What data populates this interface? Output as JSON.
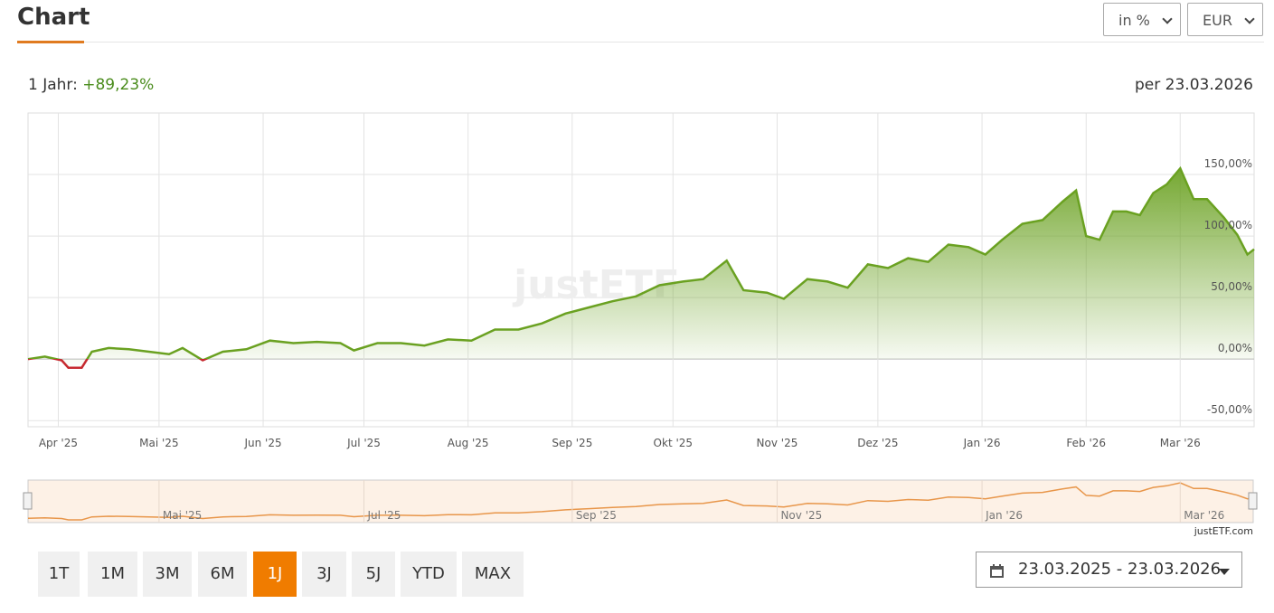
{
  "header": {
    "title": "Chart",
    "unit_select": "in %",
    "currency_select": "EUR"
  },
  "summary": {
    "period_label": "1 Jahr:",
    "period_return": "+89,23%",
    "as_of": "per 23.03.2026"
  },
  "chart_data": {
    "type": "line",
    "watermark": "justETF",
    "x": [
      0,
      5,
      10,
      12,
      16,
      19,
      24,
      30,
      36,
      42,
      46,
      52,
      58,
      65,
      72,
      79,
      86,
      93,
      97,
      104,
      111,
      118,
      125,
      132,
      139,
      146,
      153,
      160,
      167,
      174,
      181,
      188,
      195,
      201,
      208,
      213,
      220,
      225,
      232,
      238,
      244,
      250,
      256,
      262,
      268,
      274,
      280,
      285,
      290,
      296,
      302,
      308,
      312,
      315,
      319,
      323,
      327,
      331,
      335,
      339,
      343,
      347,
      351,
      356,
      360,
      363,
      365
    ],
    "series": [
      {
        "name": "1 Jahr",
        "color": "#6aa121",
        "negative_color": "#c62a2f",
        "values": [
          0,
          2,
          -1,
          -7,
          -7,
          6,
          9,
          8,
          6,
          4,
          9,
          -1,
          6,
          8,
          15,
          13,
          14,
          13,
          7,
          13,
          13,
          11,
          16,
          15,
          24,
          24,
          29,
          37,
          42,
          47,
          51,
          60,
          63,
          65,
          80,
          56,
          54,
          49,
          65,
          63,
          58,
          77,
          74,
          82,
          79,
          93,
          91,
          85,
          97,
          110,
          113,
          128,
          137,
          100,
          97,
          120,
          120,
          117,
          135,
          142,
          155,
          130,
          130,
          115,
          101,
          85,
          89.23
        ]
      }
    ],
    "xlim": [
      0,
      365
    ],
    "xticks": [
      {
        "value": 9,
        "label": "Apr '25"
      },
      {
        "value": 39,
        "label": "Mai '25"
      },
      {
        "value": 70,
        "label": "Jun '25"
      },
      {
        "value": 100,
        "label": "Jul '25"
      },
      {
        "value": 131,
        "label": "Aug '25"
      },
      {
        "value": 162,
        "label": "Sep '25"
      },
      {
        "value": 192,
        "label": "Okt '25"
      },
      {
        "value": 223,
        "label": "Nov '25"
      },
      {
        "value": 253,
        "label": "Dez '25"
      },
      {
        "value": 284,
        "label": "Jan '26"
      },
      {
        "value": 315,
        "label": "Feb '26"
      },
      {
        "value": 343,
        "label": "Mar '26"
      }
    ],
    "ylim": [
      -55,
      200
    ],
    "yticks": [
      {
        "value": -50,
        "label": "-50,00%"
      },
      {
        "value": 0,
        "label": "0,00%"
      },
      {
        "value": 50,
        "label": "50,00%"
      },
      {
        "value": 100,
        "label": "100,00%"
      },
      {
        "value": 150,
        "label": "150,00%"
      }
    ],
    "grid": true,
    "navigator": {
      "color": "#e8964a",
      "xticks": [
        {
          "value": 39,
          "label": "Mai '25"
        },
        {
          "value": 100,
          "label": "Jul '25"
        },
        {
          "value": 162,
          "label": "Sep '25"
        },
        {
          "value": 223,
          "label": "Nov '25"
        },
        {
          "value": 284,
          "label": "Jan '26"
        },
        {
          "value": 343,
          "label": "Mar '26"
        }
      ]
    },
    "credit": "justETF.com"
  },
  "range_buttons": {
    "items": [
      "1T",
      "1M",
      "3M",
      "6M",
      "1J",
      "3J",
      "5J",
      "YTD",
      "MAX"
    ],
    "active": "1J"
  },
  "date_range": "23.03.2025 - 23.03.2026"
}
